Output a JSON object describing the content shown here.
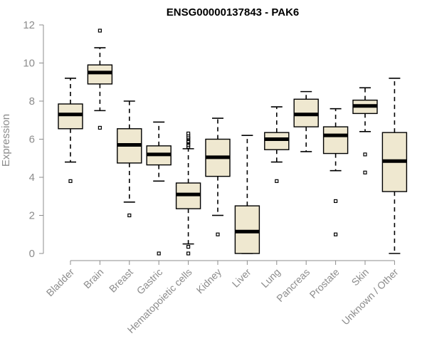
{
  "chart_data": {
    "type": "boxplot",
    "title": "ENSG00000137843 - PAK6",
    "xlabel": "",
    "ylabel": "Expression",
    "ylim": [
      0,
      12
    ],
    "yticks": [
      0,
      2,
      4,
      6,
      8,
      10,
      12
    ],
    "grid": false,
    "colors": {
      "box_fill": "#efe8d0",
      "box_stroke": "#000000",
      "axis": "#8c8c8c"
    },
    "categories": [
      "Bladder",
      "Brain",
      "Breast",
      "Gastric",
      "Hematopoietic cells",
      "Kidney",
      "Liver",
      "Lung",
      "Pancreas",
      "Prostate",
      "Skin",
      "Unknown / Other"
    ],
    "boxes": [
      {
        "name": "Bladder",
        "q1": 6.55,
        "median": 7.3,
        "q3": 7.85,
        "whisker_low": 4.8,
        "whisker_high": 9.2,
        "outliers": [
          3.8
        ]
      },
      {
        "name": "Brain",
        "q1": 8.9,
        "median": 9.5,
        "q3": 9.9,
        "whisker_low": 7.5,
        "whisker_high": 10.8,
        "outliers": [
          11.7,
          6.6
        ]
      },
      {
        "name": "Breast",
        "q1": 4.75,
        "median": 5.7,
        "q3": 6.55,
        "whisker_low": 2.7,
        "whisker_high": 8.0,
        "outliers": [
          2.0
        ]
      },
      {
        "name": "Gastric",
        "q1": 4.65,
        "median": 5.2,
        "q3": 5.65,
        "whisker_low": 3.8,
        "whisker_high": 6.9,
        "outliers": [
          0.0
        ]
      },
      {
        "name": "Hematopoietic cells",
        "q1": 2.35,
        "median": 3.1,
        "q3": 3.7,
        "whisker_low": 0.5,
        "whisker_high": 5.5,
        "outliers": [
          5.6,
          5.7,
          5.8,
          5.85,
          5.9,
          6.0,
          6.05,
          6.1,
          6.2,
          6.3,
          0.35,
          0.0
        ]
      },
      {
        "name": "Kidney",
        "q1": 4.05,
        "median": 5.05,
        "q3": 6.0,
        "whisker_low": 2.0,
        "whisker_high": 7.1,
        "outliers": [
          1.0
        ]
      },
      {
        "name": "Liver",
        "q1": 0.0,
        "median": 1.15,
        "q3": 2.5,
        "whisker_low": 0.0,
        "whisker_high": 6.2,
        "outliers": []
      },
      {
        "name": "Lung",
        "q1": 5.45,
        "median": 6.0,
        "q3": 6.35,
        "whisker_low": 4.8,
        "whisker_high": 7.7,
        "outliers": [
          3.8
        ]
      },
      {
        "name": "Pancreas",
        "q1": 6.65,
        "median": 7.3,
        "q3": 8.1,
        "whisker_low": 5.35,
        "whisker_high": 8.5,
        "outliers": []
      },
      {
        "name": "Prostate",
        "q1": 5.25,
        "median": 6.2,
        "q3": 6.65,
        "whisker_low": 4.35,
        "whisker_high": 7.6,
        "outliers": [
          2.75,
          1.0
        ]
      },
      {
        "name": "Skin",
        "q1": 7.35,
        "median": 7.75,
        "q3": 8.05,
        "whisker_low": 6.4,
        "whisker_high": 8.7,
        "outliers": [
          5.2,
          4.25
        ]
      },
      {
        "name": "Unknown / Other",
        "q1": 3.25,
        "median": 4.85,
        "q3": 6.35,
        "whisker_low": 0.0,
        "whisker_high": 9.2,
        "outliers": []
      }
    ]
  }
}
